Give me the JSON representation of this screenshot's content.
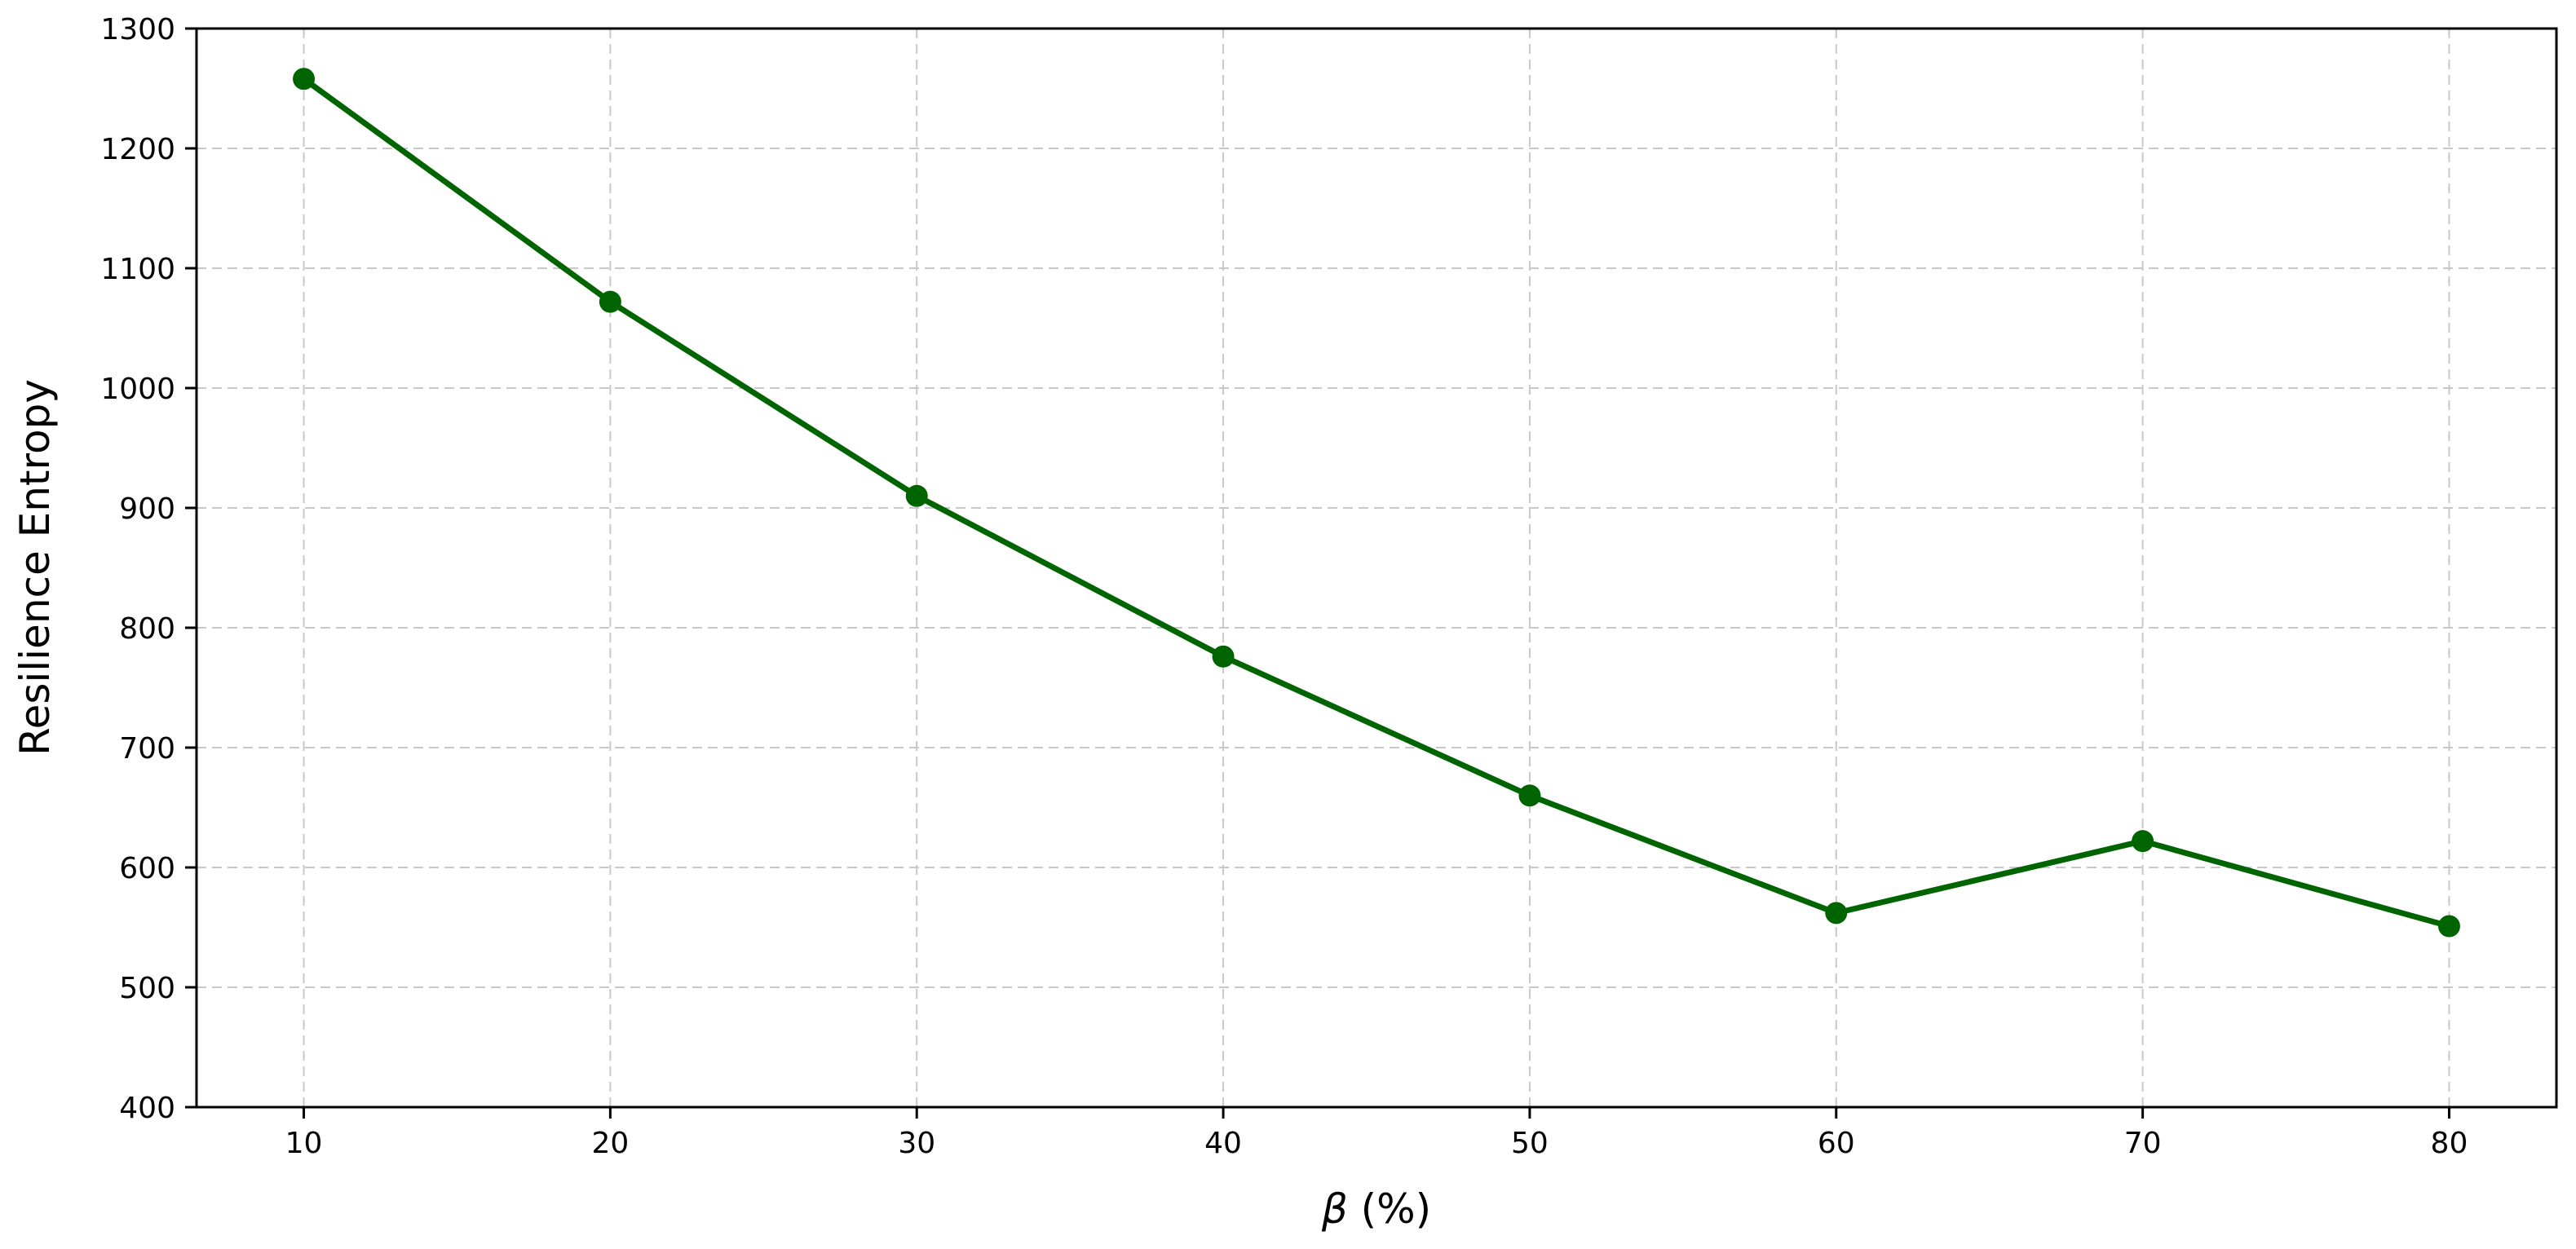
{
  "chart_data": {
    "type": "line",
    "title": "",
    "xlabel_symbol": "β",
    "xlabel_suffix": " (%)",
    "ylabel": "Resilience Entropy",
    "x": [
      10,
      20,
      30,
      40,
      50,
      60,
      70,
      80
    ],
    "series": [
      {
        "values": [
          1258,
          1072,
          910,
          776,
          660,
          562,
          622,
          551
        ],
        "color": "#006400",
        "marker": "circle"
      }
    ],
    "xticks": [
      10,
      20,
      30,
      40,
      50,
      60,
      70,
      80
    ],
    "yticks": [
      400,
      500,
      600,
      700,
      800,
      900,
      1000,
      1100,
      1200,
      1300
    ],
    "xlim": [
      6.5,
      83.5
    ],
    "ylim": [
      400,
      1300
    ],
    "grid": true,
    "grid_style": "dashed",
    "legend": false
  }
}
